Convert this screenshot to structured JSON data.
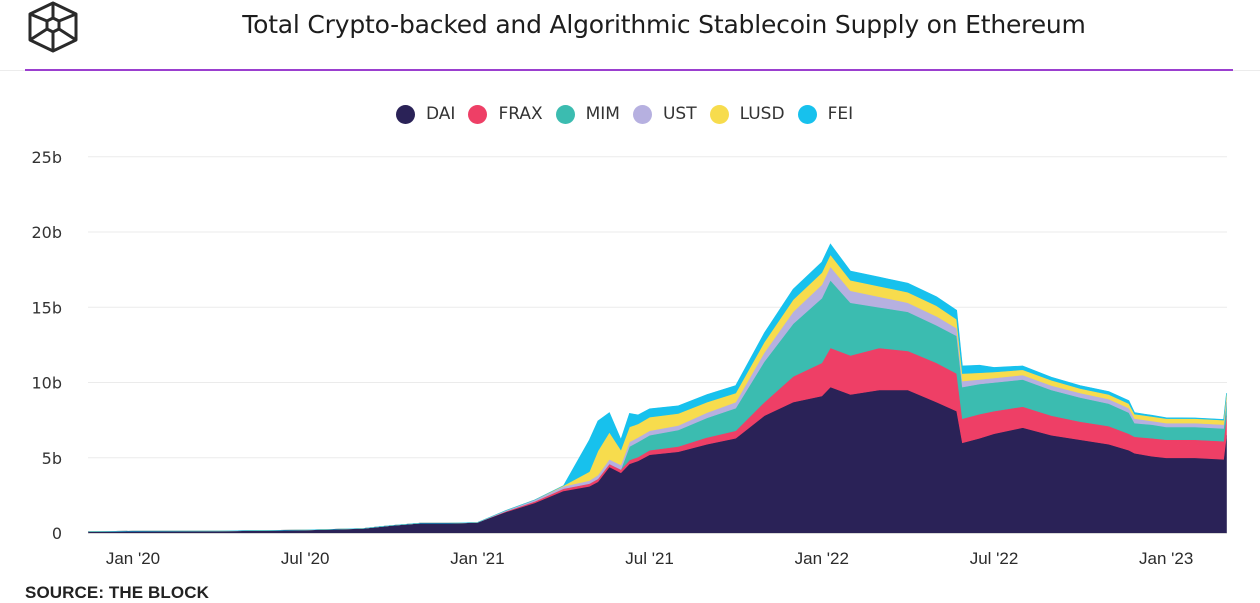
{
  "header": {
    "logo_icon": "cube-logo-icon",
    "title": "Total Crypto-backed and Algorithmic Stablecoin Supply on Ethereum"
  },
  "footer": {
    "source": "SOURCE: THE BLOCK"
  },
  "chart_data": {
    "type": "area",
    "stacked": true,
    "title": "Total Crypto-backed and Algorithmic Stablecoin Supply on Ethereum",
    "xlabel": "",
    "ylabel": "",
    "ylim": [
      0,
      25
    ],
    "y_unit": "b",
    "y_ticks": [
      {
        "value": 0,
        "label": "0"
      },
      {
        "value": 5,
        "label": "5b"
      },
      {
        "value": 10,
        "label": "10b"
      },
      {
        "value": 15,
        "label": "15b"
      },
      {
        "value": 20,
        "label": "20b"
      },
      {
        "value": 25,
        "label": "25b"
      }
    ],
    "x_ticks": [
      {
        "month": 0,
        "label": "Jan '20"
      },
      {
        "month": 6,
        "label": "Jul '20"
      },
      {
        "month": 12,
        "label": "Jan '21"
      },
      {
        "month": 18,
        "label": "Jul '21"
      },
      {
        "month": 24,
        "label": "Jan '22"
      },
      {
        "month": 30,
        "label": "Jul '22"
      },
      {
        "month": 36,
        "label": "Jan '23"
      }
    ],
    "x_unit": "months since Jan 2020",
    "xlim": [
      -1.55,
      38.1
    ],
    "grid": true,
    "legend_position": "top-center",
    "x": [
      -1.55,
      0,
      3,
      6,
      8,
      9,
      10,
      11,
      12,
      13,
      14,
      15,
      15.9,
      16.2,
      16.6,
      17.0,
      17.3,
      17.6,
      18,
      19,
      20,
      21,
      22,
      23,
      24,
      24.3,
      25,
      26,
      27,
      28,
      28.7,
      28.9,
      29.5,
      30,
      31,
      32,
      33,
      34,
      34.7,
      34.9,
      35.5,
      36,
      37,
      38.0,
      38.1
    ],
    "series": [
      {
        "name": "DAI",
        "color": "#2a2257",
        "values": [
          0.1,
          0.12,
          0.13,
          0.2,
          0.3,
          0.5,
          0.65,
          0.65,
          0.7,
          1.4,
          2.0,
          2.8,
          3.1,
          3.4,
          4.4,
          4.0,
          4.6,
          4.8,
          5.2,
          5.4,
          5.9,
          6.3,
          7.8,
          8.7,
          9.1,
          9.7,
          9.2,
          9.5,
          9.5,
          8.7,
          8.1,
          6.0,
          6.3,
          6.6,
          7.0,
          6.5,
          6.2,
          5.9,
          5.5,
          5.3,
          5.1,
          5.0,
          5.0,
          4.9,
          6.5
        ]
      },
      {
        "name": "FRAX",
        "color": "#ee3f66",
        "values": [
          0,
          0,
          0,
          0,
          0,
          0,
          0,
          0,
          0,
          0.05,
          0.1,
          0.15,
          0.18,
          0.2,
          0.2,
          0.22,
          0.25,
          0.25,
          0.3,
          0.35,
          0.45,
          0.5,
          0.9,
          1.7,
          2.2,
          2.6,
          2.6,
          2.8,
          2.6,
          2.6,
          2.5,
          1.6,
          1.6,
          1.5,
          1.4,
          1.3,
          1.2,
          1.2,
          1.1,
          1.1,
          1.2,
          1.2,
          1.2,
          1.2,
          1.3
        ]
      },
      {
        "name": "MIM",
        "color": "#3bbcb0",
        "values": [
          0,
          0,
          0,
          0,
          0,
          0,
          0,
          0,
          0,
          0,
          0,
          0,
          0,
          0,
          0,
          0,
          0.9,
          1.0,
          1.0,
          1.1,
          1.3,
          1.5,
          2.7,
          3.5,
          4.3,
          4.5,
          3.5,
          2.7,
          2.6,
          2.5,
          2.5,
          2.1,
          2.0,
          1.9,
          1.8,
          1.7,
          1.6,
          1.5,
          1.4,
          0.9,
          0.9,
          0.85,
          0.85,
          0.85,
          0.9
        ]
      },
      {
        "name": "UST",
        "color": "#b6b0e0",
        "values": [
          0,
          0,
          0,
          0,
          0,
          0,
          0,
          0,
          0,
          0.05,
          0.1,
          0.15,
          0.2,
          0.25,
          0.3,
          0.3,
          0.3,
          0.3,
          0.3,
          0.3,
          0.35,
          0.4,
          0.6,
          0.8,
          0.9,
          0.9,
          0.8,
          0.7,
          0.6,
          0.6,
          0.5,
          0.4,
          0.3,
          0.3,
          0.3,
          0.3,
          0.3,
          0.3,
          0.3,
          0.3,
          0.25,
          0.25,
          0.25,
          0.25,
          0.25
        ]
      },
      {
        "name": "LUSD",
        "color": "#f7dc4d",
        "values": [
          0,
          0,
          0,
          0,
          0,
          0,
          0,
          0,
          0,
          0,
          0,
          0.05,
          0.6,
          1.6,
          1.8,
          1.0,
          1.0,
          0.9,
          0.9,
          0.8,
          0.7,
          0.6,
          0.7,
          0.8,
          0.8,
          0.8,
          0.7,
          0.7,
          0.7,
          0.7,
          0.6,
          0.5,
          0.45,
          0.4,
          0.35,
          0.35,
          0.3,
          0.3,
          0.3,
          0.3,
          0.3,
          0.3,
          0.3,
          0.3,
          0.3
        ]
      },
      {
        "name": "FEI",
        "color": "#17c1ed",
        "values": [
          0,
          0,
          0,
          0,
          0,
          0,
          0,
          0,
          0,
          0,
          0,
          0,
          2.1,
          2.0,
          1.3,
          0.7,
          0.9,
          0.6,
          0.55,
          0.5,
          0.5,
          0.5,
          0.6,
          0.7,
          0.7,
          0.7,
          0.6,
          0.6,
          0.6,
          0.6,
          0.6,
          0.5,
          0.5,
          0.3,
          0.25,
          0.2,
          0.2,
          0.2,
          0.2,
          0.1,
          0.08,
          0.06,
          0.05,
          0.05,
          0.05
        ]
      }
    ]
  }
}
